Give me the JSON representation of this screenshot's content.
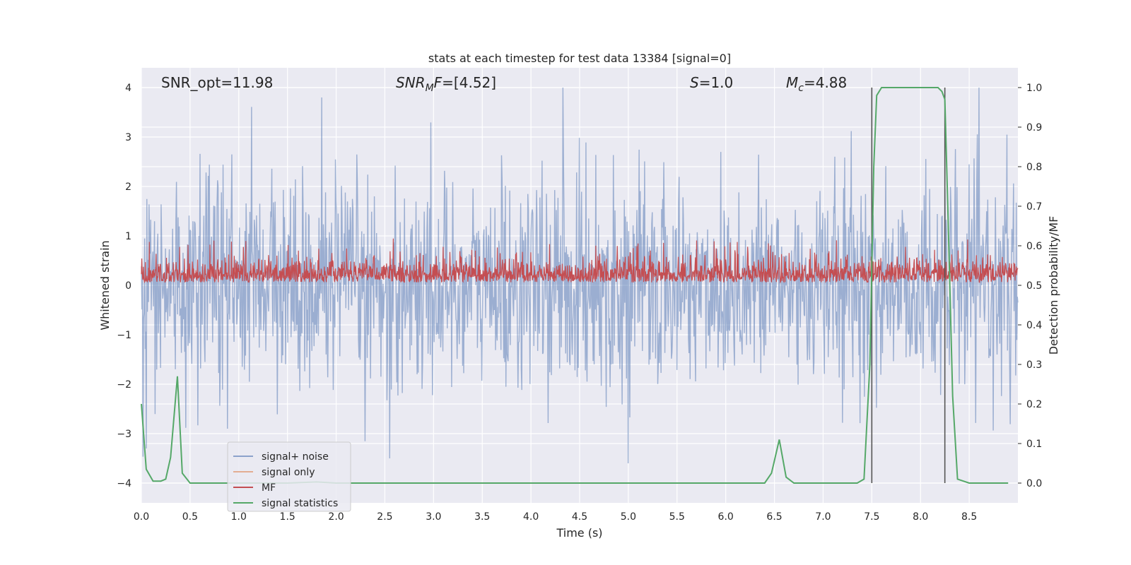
{
  "chart_data": {
    "type": "line",
    "title": "stats at each timestep for test data 13384 [signal=0]",
    "xlabel": "Time (s)",
    "ylabel": "Whitened strain",
    "y2label": "Detection probability/MF",
    "xlim": [
      0.0,
      9.0
    ],
    "ylim": [
      -4.4,
      4.4
    ],
    "y2lim": [
      -0.05,
      1.05
    ],
    "xticks": [
      "0.0",
      "0.5",
      "1.0",
      "1.5",
      "2.0",
      "2.5",
      "3.0",
      "3.5",
      "4.0",
      "4.5",
      "5.0",
      "5.5",
      "6.0",
      "6.5",
      "7.0",
      "7.5",
      "8.0",
      "8.5"
    ],
    "yticks": [
      "4",
      "3",
      "2",
      "1",
      "0",
      "−1",
      "−2",
      "−3",
      "−4"
    ],
    "y2ticks": [
      "1.0",
      "0.9",
      "0.8",
      "0.7",
      "0.6",
      "0.5",
      "0.4",
      "0.3",
      "0.2",
      "0.1",
      "0.0"
    ],
    "grid": true,
    "legend_position": "lower-left",
    "annotations": {
      "snr_opt": "SNR_opt=11.98",
      "snr_mf_main": "SNR",
      "snr_mf_sub": "M",
      "snr_mf_rest": "F",
      "snr_mf_value": "=[4.52]",
      "s_var": "S",
      "s_value": "=1.0",
      "mc_var": "M",
      "mc_sub": "c",
      "mc_value": "=4.88"
    },
    "vertical_markers_x": [
      7.5,
      8.25
    ],
    "series": [
      {
        "name": "signal+ noise",
        "color": "#4c72b0",
        "axis": "left",
        "description": "noise-like whitened strain",
        "amplitude_range": [
          -3.6,
          4.0
        ],
        "peaks": [
          [
            1.85,
            3.8
          ],
          [
            4.33,
            4.0
          ],
          [
            5.0,
            -3.6
          ],
          [
            2.55,
            -3.5
          ],
          [
            0.05,
            -3.3
          ]
        ]
      },
      {
        "name": "signal only",
        "color": "#dd8452",
        "axis": "left",
        "values": []
      },
      {
        "name": "MF",
        "color": "#c44e52",
        "axis": "left",
        "amplitude_range": [
          0.0,
          0.95
        ]
      },
      {
        "name": "signal statistics",
        "color": "#55a868",
        "axis": "right",
        "x": [
          0.0,
          0.05,
          0.12,
          0.2,
          0.25,
          0.3,
          0.37,
          0.42,
          0.5,
          1.0,
          1.5,
          1.8,
          2.0,
          3.0,
          4.0,
          5.0,
          6.0,
          6.4,
          6.47,
          6.55,
          6.62,
          6.7,
          7.0,
          7.35,
          7.42,
          7.48,
          7.52,
          7.55,
          7.6,
          7.65,
          7.8,
          8.0,
          8.18,
          8.22,
          8.25,
          8.28,
          8.33,
          8.38,
          8.5,
          8.9
        ],
        "values": [
          0.2,
          0.035,
          0.005,
          0.005,
          0.01,
          0.065,
          0.27,
          0.025,
          0.0,
          0.0,
          0.0,
          0.003,
          0.0,
          0.0,
          0.0,
          0.0,
          0.0,
          0.0,
          0.025,
          0.11,
          0.015,
          0.0,
          0.0,
          0.0,
          0.01,
          0.3,
          0.8,
          0.98,
          1.0,
          1.0,
          1.0,
          1.0,
          1.0,
          0.99,
          0.97,
          0.7,
          0.22,
          0.01,
          0.0,
          0.0
        ]
      }
    ]
  }
}
